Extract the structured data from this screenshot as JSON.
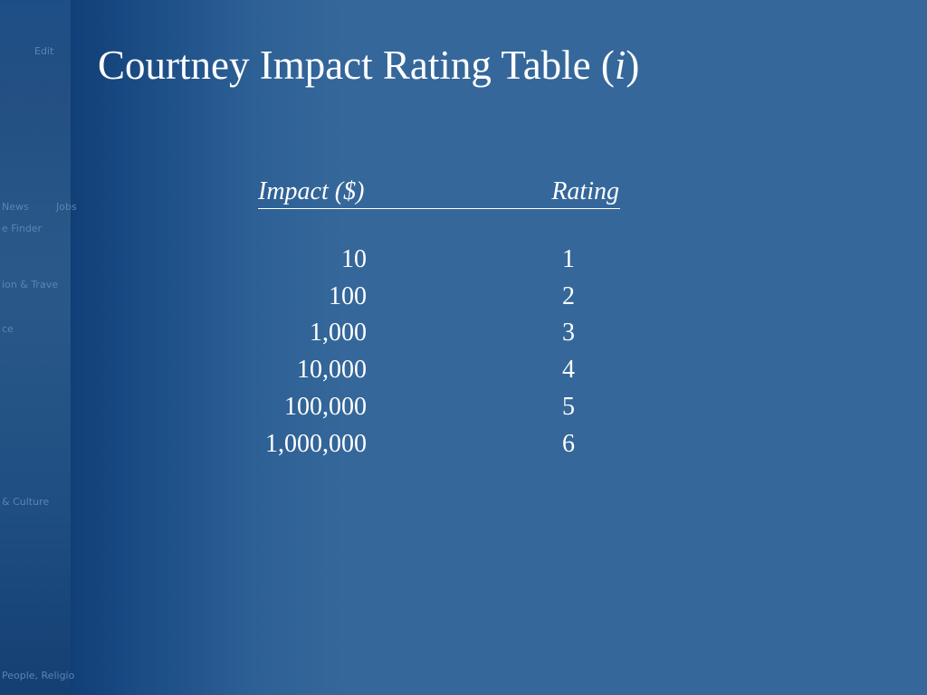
{
  "title": [
    "Courtney Impact Rating Table (",
    "i",
    ")"
  ],
  "sidebar_fragments": [
    "Edit",
    "News",
    "Jobs",
    "e Finder",
    "ion & Trave",
    "ce",
    "& Culture",
    "People, Religio"
  ],
  "table": {
    "header": [
      "Impact ($)",
      "Rating"
    ],
    "rows": [
      [
        "10",
        "1"
      ],
      [
        "100",
        "2"
      ],
      [
        "1,000",
        "3"
      ],
      [
        "10,000",
        "4"
      ],
      [
        "100,000",
        "5"
      ],
      [
        "1,000,000",
        "6"
      ]
    ]
  }
}
